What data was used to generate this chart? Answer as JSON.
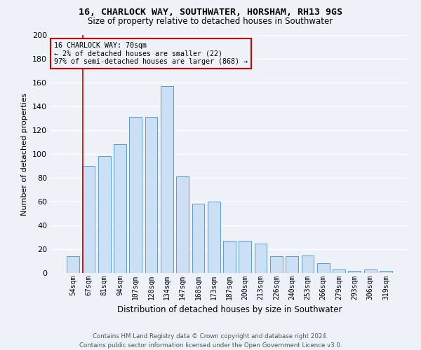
{
  "title": "16, CHARLOCK WAY, SOUTHWATER, HORSHAM, RH13 9GS",
  "subtitle": "Size of property relative to detached houses in Southwater",
  "xlabel": "Distribution of detached houses by size in Southwater",
  "ylabel": "Number of detached properties",
  "categories": [
    "54sqm",
    "67sqm",
    "81sqm",
    "94sqm",
    "107sqm",
    "120sqm",
    "134sqm",
    "147sqm",
    "160sqm",
    "173sqm",
    "187sqm",
    "200sqm",
    "213sqm",
    "226sqm",
    "240sqm",
    "253sqm",
    "266sqm",
    "279sqm",
    "293sqm",
    "306sqm",
    "319sqm"
  ],
  "values": [
    14,
    90,
    98,
    108,
    131,
    131,
    157,
    81,
    58,
    60,
    27,
    27,
    25,
    14,
    14,
    15,
    8,
    3,
    2,
    3,
    2
  ],
  "bar_color": "#cce0f5",
  "bar_edge_color": "#5b9bd5",
  "background_color": "#eef2f8",
  "grid_color": "#ffffff",
  "annotation_text_line1": "16 CHARLOCK WAY: 70sqm",
  "annotation_text_line2": "← 2% of detached houses are smaller (22)",
  "annotation_text_line3": "97% of semi-detached houses are larger (868) →",
  "vline_color": "#cc0000",
  "vline_x_index": 0.62,
  "footer_line1": "Contains HM Land Registry data © Crown copyright and database right 2024.",
  "footer_line2": "Contains public sector information licensed under the Open Government Licence v3.0.",
  "ylim": [
    0,
    200
  ],
  "yticks": [
    0,
    20,
    40,
    60,
    80,
    100,
    120,
    140,
    160,
    180,
    200
  ]
}
